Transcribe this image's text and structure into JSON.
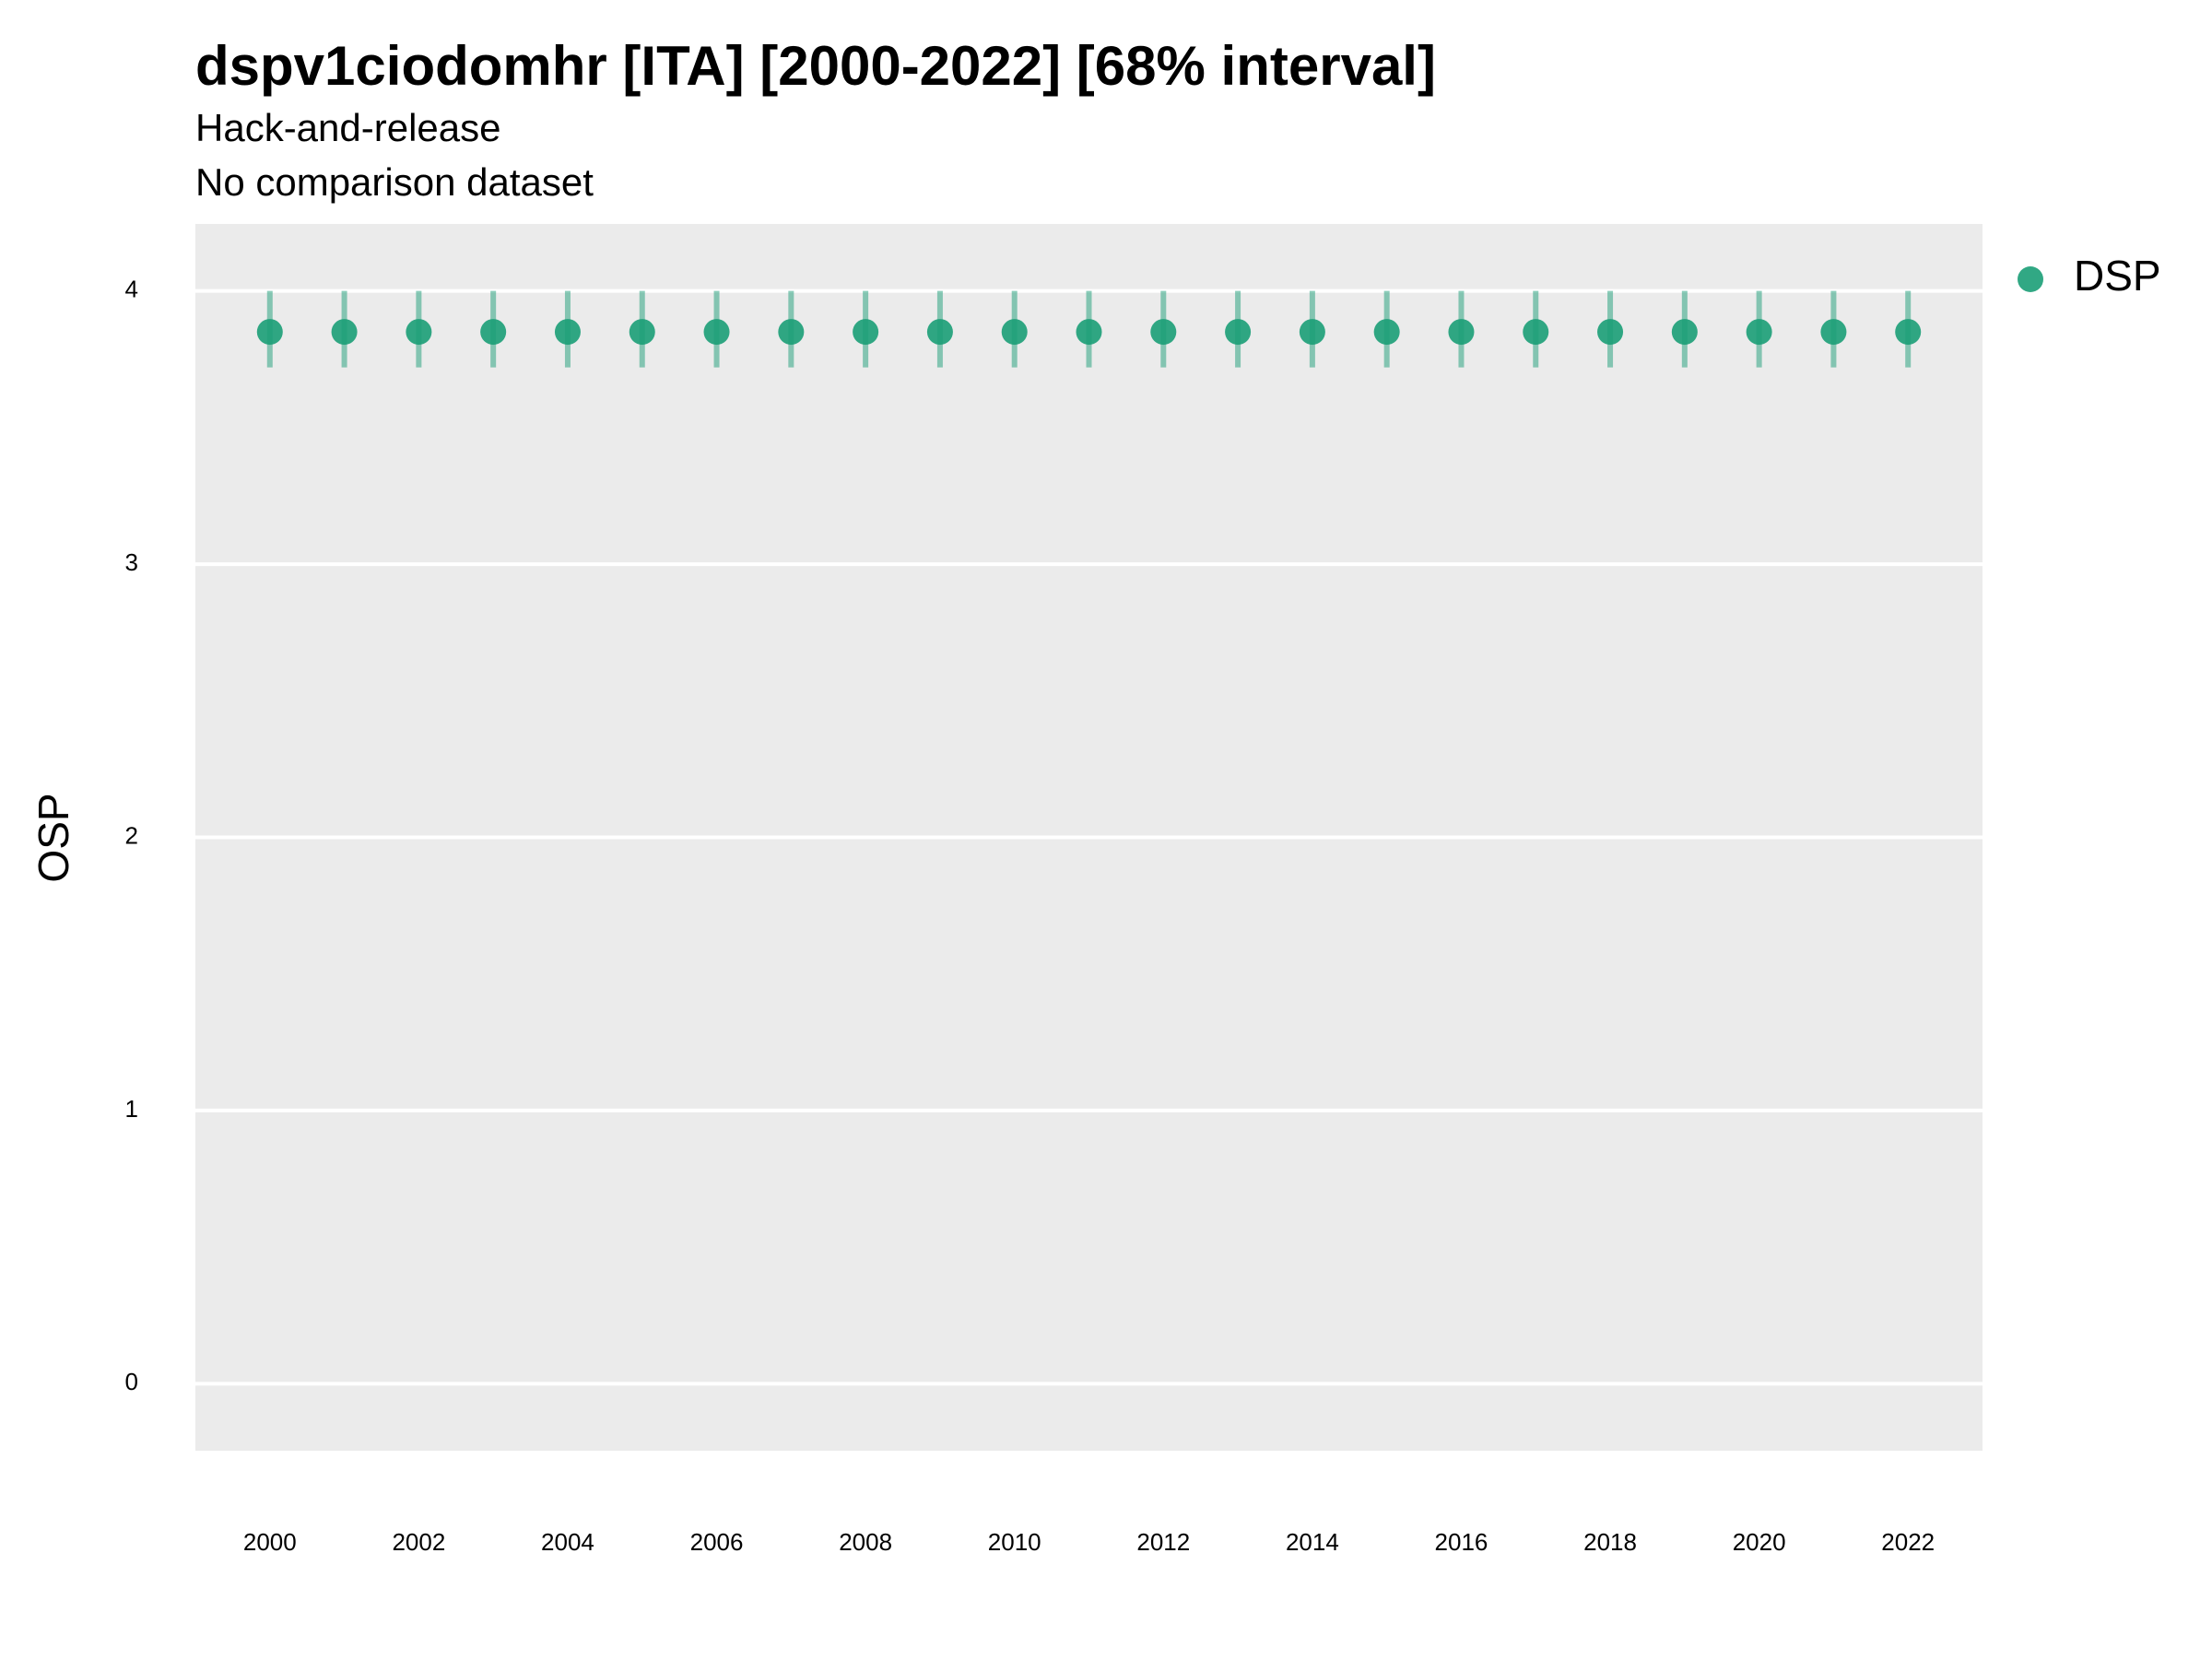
{
  "chart_data": {
    "type": "pointrange",
    "title": "dspv1ciodomhr [ITA] [2000-2022] [68% interval]",
    "subtitle": [
      "Hack-and-release",
      "No comparison dataset"
    ],
    "y_label": "OSP",
    "x": [
      2000,
      2001,
      2002,
      2003,
      2004,
      2005,
      2006,
      2007,
      2008,
      2009,
      2010,
      2011,
      2012,
      2013,
      2014,
      2015,
      2016,
      2017,
      2018,
      2019,
      2020,
      2021,
      2022
    ],
    "series": [
      {
        "name": "DSP",
        "color": "#1b9e77",
        "values": [
          3.85,
          3.85,
          3.85,
          3.85,
          3.85,
          3.85,
          3.85,
          3.85,
          3.85,
          3.85,
          3.85,
          3.85,
          3.85,
          3.85,
          3.85,
          3.85,
          3.85,
          3.85,
          3.85,
          3.85,
          3.85,
          3.85,
          3.85
        ],
        "lower": [
          3.72,
          3.72,
          3.72,
          3.72,
          3.72,
          3.72,
          3.72,
          3.72,
          3.72,
          3.72,
          3.72,
          3.72,
          3.72,
          3.72,
          3.72,
          3.72,
          3.72,
          3.72,
          3.72,
          3.72,
          3.72,
          3.72,
          3.72
        ],
        "upper": [
          4.0,
          4.0,
          4.0,
          4.0,
          4.0,
          4.0,
          4.0,
          4.0,
          4.0,
          4.0,
          4.0,
          4.0,
          4.0,
          4.0,
          4.0,
          4.0,
          4.0,
          4.0,
          4.0,
          4.0,
          4.0,
          4.0,
          4.0
        ]
      }
    ],
    "xlim": [
      1999,
      2023
    ],
    "xticks": [
      2000,
      2002,
      2004,
      2006,
      2008,
      2010,
      2012,
      2014,
      2016,
      2018,
      2020,
      2022
    ],
    "ylim": [
      -0.245,
      4.245
    ],
    "yticks": [
      0,
      1,
      2,
      3,
      4
    ],
    "grid": true,
    "legend": "right"
  }
}
